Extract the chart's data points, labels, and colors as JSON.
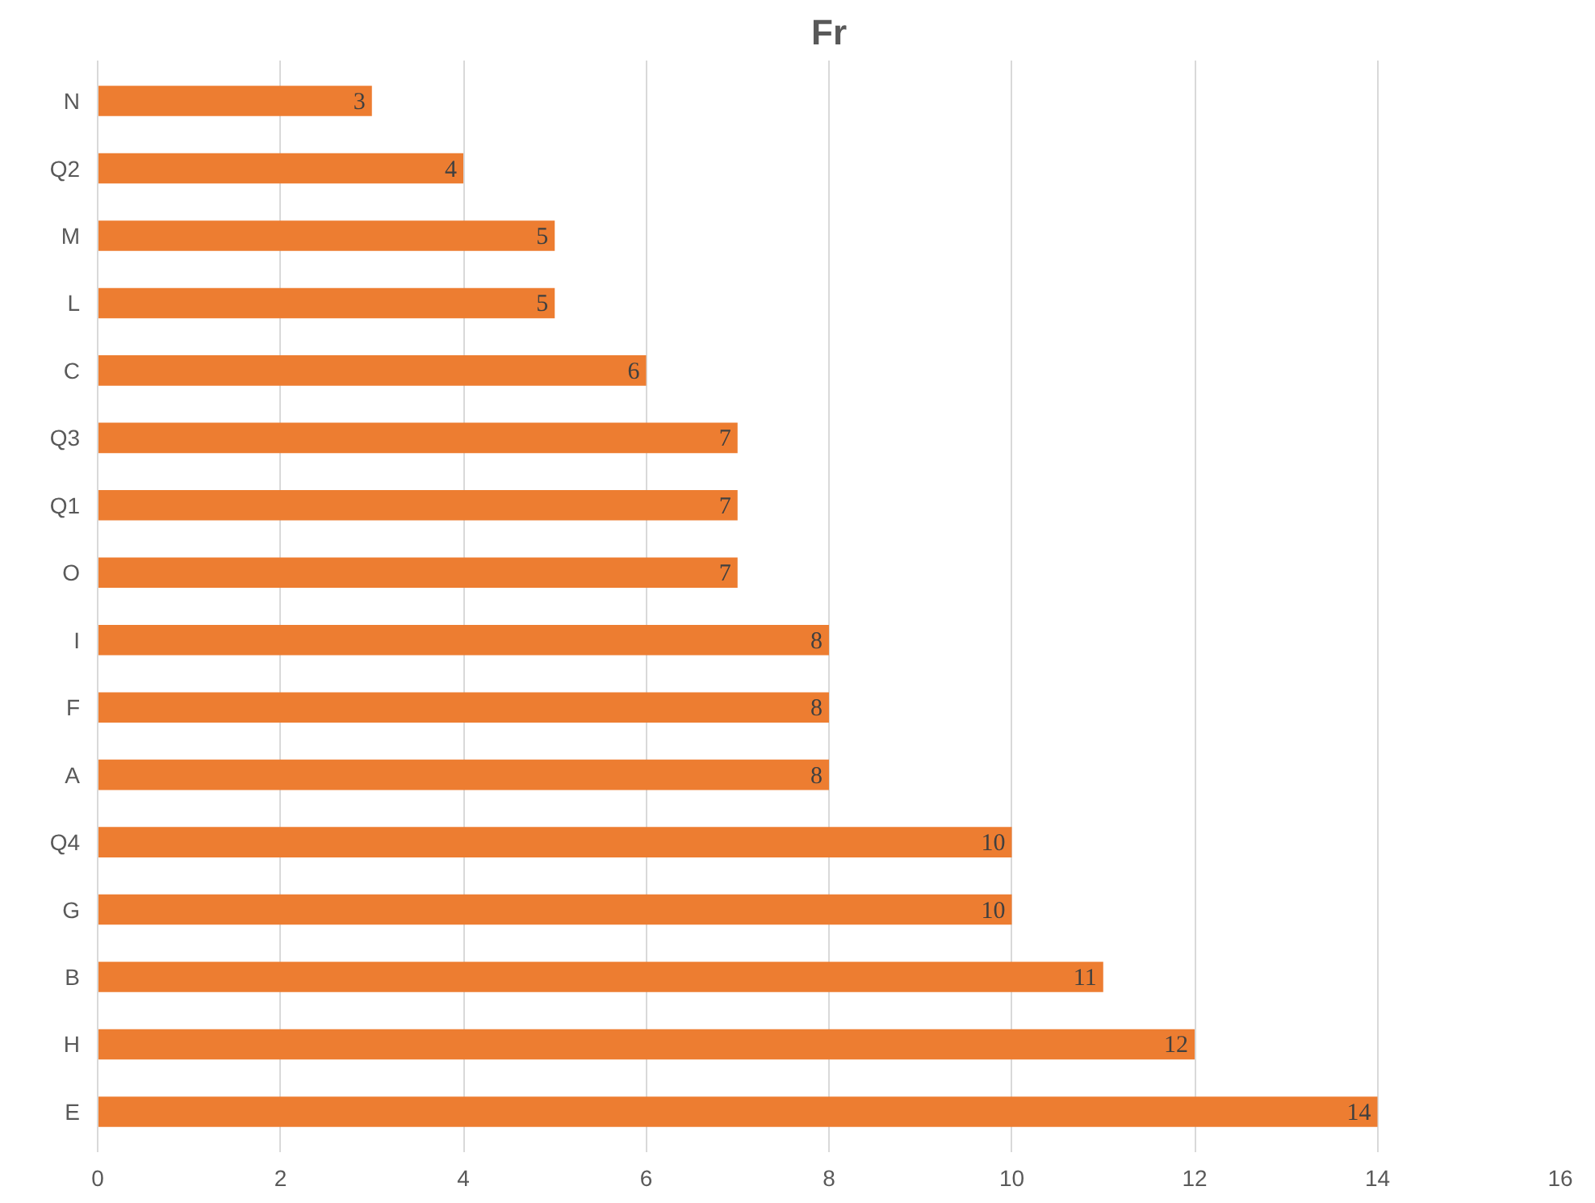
{
  "chart_data": {
    "type": "bar",
    "orientation": "horizontal",
    "title": "Fr",
    "categories": [
      "N",
      "Q2",
      "M",
      "L",
      "C",
      "Q3",
      "Q1",
      "O",
      "I",
      "F",
      "A",
      "Q4",
      "G",
      "B",
      "H",
      "E"
    ],
    "values": [
      3,
      4,
      5,
      5,
      6,
      7,
      7,
      7,
      8,
      8,
      8,
      10,
      10,
      11,
      12,
      14
    ],
    "color": "#ed7d31",
    "xlim": [
      0,
      16
    ],
    "xticks": [
      0,
      2,
      4,
      6,
      8,
      10,
      12,
      14,
      16
    ],
    "grid": "x",
    "data_labels": true
  }
}
